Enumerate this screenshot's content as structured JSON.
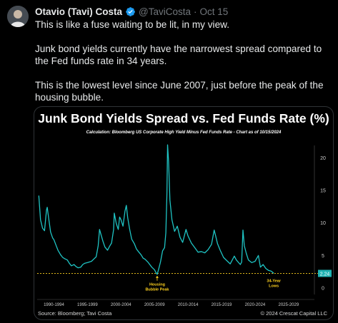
{
  "tweet": {
    "author_name": "Otavio (Tavi) Costa",
    "handle": "@TaviCosta",
    "separator": "·",
    "time": "Oct 15",
    "paragraphs": [
      "This is like a fuse waiting to be lit, in my view.",
      "Junk bond yields currently have the narrowest spread compared to the Fed funds rate in 34 years.",
      "This is the lowest level since June 2007, just before the peak of the housing bubble."
    ]
  },
  "icons": {
    "verified": "verified-badge-icon",
    "avatar": "avatar"
  },
  "colors": {
    "background": "#000000",
    "accent": "#1d9bf0",
    "series": "#1fc4c4",
    "annotation": "#ffd21f",
    "current_value_box": "#1fb3b3"
  },
  "chart_data": {
    "type": "line",
    "title": "Junk Bond Yields Spread vs. Fed Funds Rate (%)",
    "subtitle": "Calculation: Bloomberg US Corporate High Yield Minus Fed Funds Rate - Chart as of 10/15/2024",
    "x_tick_labels": [
      "1990-1994",
      "1995-1999",
      "2000-2004",
      "2005-2009",
      "2010-2014",
      "2015-2019",
      "2020-2024",
      "2025-2029"
    ],
    "y_tick_labels": [
      "0",
      "5",
      "10",
      "15",
      "20"
    ],
    "ylim": [
      -1,
      23
    ],
    "xlim": [
      1989.5,
      2030
    ],
    "grid": false,
    "current_value_label": "2.24",
    "reference_level": 2.24,
    "annotations": [
      {
        "text_lines": [
          "Housing",
          "Bubble Peak"
        ],
        "x": 2007.4,
        "y": 2.1
      },
      {
        "text_lines": [
          "34-Year",
          "Lows"
        ],
        "x": 2024.8,
        "y": 2.24
      }
    ],
    "series": [
      {
        "x": [
          1989.75,
          1990.0,
          1990.3,
          1990.6,
          1990.9,
          1991.0,
          1991.2,
          1991.5,
          1991.8,
          1992.0,
          1992.3,
          1992.6,
          1993.0,
          1993.3,
          1993.6,
          1994.0,
          1994.3,
          1994.6,
          1995.0,
          1995.3,
          1995.6,
          1996.0,
          1996.3,
          1996.6,
          1997.0,
          1997.3,
          1997.6,
          1998.0,
          1998.3,
          1998.6,
          1998.8,
          1999.0,
          1999.3,
          1999.6,
          2000.0,
          2000.3,
          2000.6,
          2000.9,
          2001.0,
          2001.3,
          2001.6,
          2001.8,
          2002.0,
          2002.3,
          2002.6,
          2002.8,
          2003.0,
          2003.3,
          2003.6,
          2004.0,
          2004.3,
          2004.6,
          2005.0,
          2005.3,
          2005.6,
          2006.0,
          2006.3,
          2006.6,
          2007.0,
          2007.2,
          2007.4,
          2007.6,
          2007.9,
          2008.2,
          2008.5,
          2008.7,
          2008.85,
          2008.95,
          2009.1,
          2009.3,
          2009.6,
          2010.0,
          2010.4,
          2010.8,
          2011.2,
          2011.7,
          2012.0,
          2012.5,
          2013.0,
          2013.5,
          2014.0,
          2014.5,
          2015.0,
          2015.5,
          2015.9,
          2016.1,
          2016.4,
          2016.8,
          2017.3,
          2017.8,
          2018.3,
          2018.9,
          2019.2,
          2019.8,
          2020.0,
          2020.2,
          2020.4,
          2020.7,
          2021.0,
          2021.5,
          2022.0,
          2022.5,
          2022.8,
          2023.2,
          2023.6,
          2024.0,
          2024.4,
          2024.8
        ],
        "y": [
          14.2,
          10.5,
          9.2,
          8.8,
          12.0,
          12.4,
          10.8,
          8.6,
          7.7,
          7.4,
          6.6,
          5.8,
          5.1,
          4.7,
          4.5,
          4.3,
          3.8,
          3.4,
          3.6,
          3.3,
          3.1,
          3.2,
          3.6,
          3.8,
          3.9,
          4.0,
          4.1,
          4.5,
          4.8,
          6.5,
          9.0,
          8.3,
          7.2,
          6.3,
          5.8,
          6.4,
          6.9,
          9.0,
          11.5,
          9.9,
          9.0,
          10.9,
          10.5,
          9.5,
          11.8,
          12.7,
          10.8,
          9.0,
          7.5,
          6.8,
          6.0,
          5.6,
          5.1,
          4.6,
          4.4,
          4.0,
          3.6,
          3.2,
          2.8,
          2.4,
          2.1,
          2.8,
          4.0,
          5.7,
          6.2,
          8.5,
          14.5,
          22.0,
          19.5,
          13.5,
          10.5,
          8.7,
          9.5,
          7.8,
          7.0,
          9.0,
          8.0,
          6.9,
          6.2,
          5.5,
          5.6,
          5.4,
          5.9,
          6.7,
          8.9,
          8.1,
          6.8,
          5.8,
          4.7,
          4.2,
          3.7,
          4.9,
          4.3,
          3.6,
          4.0,
          8.9,
          6.5,
          5.3,
          4.3,
          3.9,
          4.1,
          5.0,
          3.2,
          3.6,
          3.0,
          2.7,
          2.6,
          2.24
        ]
      }
    ]
  },
  "footer": {
    "source": "Source: Bloomberg; Tavi Costa",
    "copyright": "© 2024 Crescat Capital LLC"
  }
}
